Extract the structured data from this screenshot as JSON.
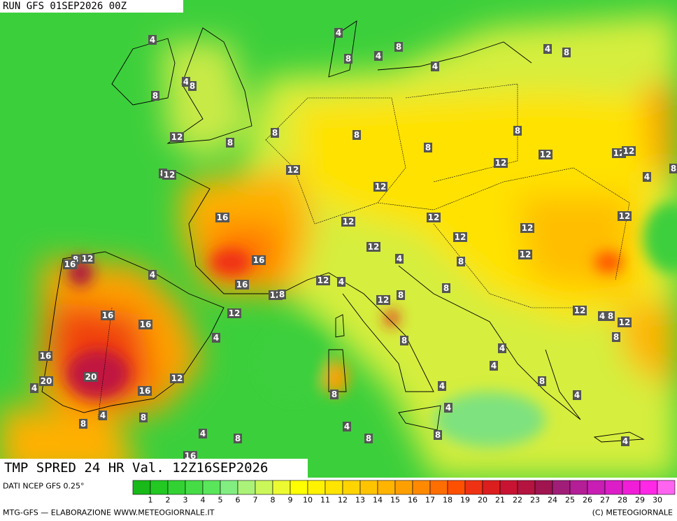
{
  "header": {
    "run": "RUN GFS 01SEP2026 00Z"
  },
  "map": {
    "title": "TMP SPRED 24 HR Val. 12Z16SEP2026",
    "contour_labels": [
      4,
      4,
      8,
      8,
      4,
      4,
      8,
      4,
      8,
      8,
      4,
      12,
      8,
      8,
      8,
      8,
      8,
      12,
      12,
      12,
      8,
      12,
      12,
      12,
      12,
      4,
      8,
      16,
      12,
      12,
      12,
      12,
      12,
      12,
      12,
      16,
      8,
      12,
      16,
      4,
      4,
      8,
      16,
      12,
      8,
      12,
      4,
      8,
      8,
      12,
      16,
      12,
      12,
      4,
      8,
      12,
      16,
      4,
      8,
      8,
      4,
      16,
      4,
      20,
      20,
      4,
      12,
      8,
      4,
      16,
      8,
      4,
      4,
      4,
      8,
      8,
      4,
      4,
      8,
      8,
      8,
      4,
      16
    ]
  },
  "legend": {
    "source": "DATI NCEP GFS 0.25°",
    "ticks": [
      1,
      2,
      3,
      4,
      5,
      6,
      7,
      8,
      9,
      10,
      11,
      12,
      13,
      14,
      15,
      16,
      17,
      18,
      19,
      20,
      21,
      22,
      23,
      24,
      25,
      26,
      27,
      28,
      29,
      30
    ],
    "colors": [
      "#18b918",
      "#23c823",
      "#32d232",
      "#46dc46",
      "#5ae65a",
      "#82ee82",
      "#aaf278",
      "#ccf75a",
      "#ecfa32",
      "#ffff00",
      "#fff200",
      "#ffe400",
      "#ffd400",
      "#ffc400",
      "#ffb400",
      "#ffa000",
      "#ff8a00",
      "#ff6e00",
      "#ff5000",
      "#f03214",
      "#dc1e1e",
      "#c81432",
      "#b4143f",
      "#a01450",
      "#a01e78",
      "#b41e96",
      "#c81eb4",
      "#dc1ec8",
      "#f01ed7",
      "#ff28e6",
      "#ff64f0"
    ]
  },
  "footer": {
    "left": "MTG-GFS — ELABORAZIONE WWW.METEOGIORNALE.IT",
    "right": "(C) METEOGIORNALE"
  }
}
